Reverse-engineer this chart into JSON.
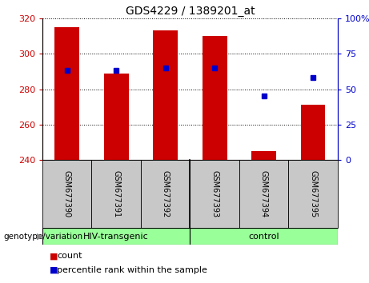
{
  "title": "GDS4229 / 1389201_at",
  "samples": [
    "GSM677390",
    "GSM677391",
    "GSM677392",
    "GSM677393",
    "GSM677394",
    "GSM677395"
  ],
  "bar_values": [
    315,
    289,
    313,
    310,
    245,
    271
  ],
  "percentile_values": [
    63,
    63,
    65,
    65,
    45,
    58
  ],
  "ylim_left": [
    240,
    320
  ],
  "ylim_right": [
    0,
    100
  ],
  "yticks_left": [
    240,
    260,
    280,
    300,
    320
  ],
  "yticks_right": [
    0,
    25,
    50,
    75,
    100
  ],
  "bar_color": "#cc0000",
  "dot_color": "#0000cc",
  "group_hiv_label": "HIV-transgenic",
  "group_ctrl_label": "control",
  "group_color": "#99ff99",
  "group_label_text": "genotype/variation",
  "legend_items": [
    {
      "label": "count",
      "color": "#cc0000"
    },
    {
      "label": "percentile rank within the sample",
      "color": "#0000cc"
    }
  ],
  "tick_color_left": "#cc0000",
  "tick_color_right": "#0000cc",
  "bar_baseline": 240,
  "plot_bg": "#ffffff",
  "sample_bg": "#c8c8c8"
}
